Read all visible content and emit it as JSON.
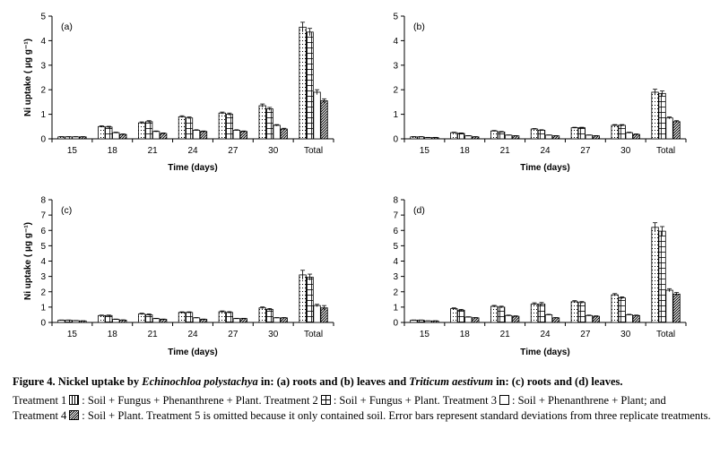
{
  "caption": {
    "title_parts": [
      "Figure 4. Nickel uptake by ",
      "Echinochloa polystachya",
      " in: (a) roots and (b) leaves and ",
      "Triticum aestivum",
      " in: (c) roots and (d) leaves."
    ],
    "t1_label": "Treatment 1",
    "t1_text": ": Soil + Fungus + Phenanthrene + Plant. Treatment 2",
    "t2_text": ":  Soil + Fungus + Plant. Treatment 3",
    "t3_text": ":  Soil + Phenanthrene + Plant; and Treatment 4",
    "t4_text": ": Soil + Plant. Treatment 5 is omitted because it only contained soil.  Error bars represent standard deviations from three replicate treatments."
  },
  "chart_data": [
    {
      "type": "bar",
      "panel": "(a)",
      "categories": [
        "15",
        "18",
        "21",
        "24",
        "27",
        "30",
        "Total"
      ],
      "xlabel": "Time (days)",
      "ylabel": "Ni uptake ( μg g⁻¹)",
      "ylim": [
        0,
        5
      ],
      "yticks": [
        0,
        1,
        2,
        3,
        4,
        5
      ],
      "series": [
        {
          "values": [
            0.08,
            0.5,
            0.65,
            0.9,
            1.05,
            1.35,
            4.55
          ],
          "errors": [
            0.01,
            0.03,
            0.04,
            0.04,
            0.04,
            0.07,
            0.2
          ],
          "pattern": "dots"
        },
        {
          "values": [
            0.08,
            0.48,
            0.7,
            0.85,
            1.0,
            1.22,
            4.35
          ],
          "errors": [
            0.01,
            0.03,
            0.04,
            0.04,
            0.05,
            0.06,
            0.15
          ],
          "pattern": "grid"
        },
        {
          "values": [
            0.08,
            0.25,
            0.3,
            0.35,
            0.35,
            0.55,
            1.9
          ],
          "errors": [
            0.01,
            0.02,
            0.02,
            0.02,
            0.02,
            0.03,
            0.1
          ],
          "pattern": "blank"
        },
        {
          "values": [
            0.08,
            0.18,
            0.22,
            0.3,
            0.3,
            0.4,
            1.55
          ],
          "errors": [
            0.01,
            0.02,
            0.02,
            0.02,
            0.02,
            0.03,
            0.08
          ],
          "pattern": "diag"
        }
      ]
    },
    {
      "type": "bar",
      "panel": "(b)",
      "categories": [
        "15",
        "18",
        "21",
        "24",
        "27",
        "30",
        "Total"
      ],
      "xlabel": "Time (days)",
      "ylabel": "",
      "ylim": [
        0,
        5
      ],
      "yticks": [
        0,
        1,
        2,
        3,
        4,
        5
      ],
      "series": [
        {
          "values": [
            0.08,
            0.25,
            0.32,
            0.4,
            0.45,
            0.55,
            1.9
          ],
          "errors": [
            0.01,
            0.02,
            0.02,
            0.02,
            0.02,
            0.03,
            0.12
          ],
          "pattern": "dots"
        },
        {
          "values": [
            0.08,
            0.22,
            0.28,
            0.35,
            0.45,
            0.55,
            1.85
          ],
          "errors": [
            0.01,
            0.02,
            0.02,
            0.02,
            0.02,
            0.03,
            0.1
          ],
          "pattern": "grid"
        },
        {
          "values": [
            0.05,
            0.12,
            0.15,
            0.15,
            0.15,
            0.25,
            0.85
          ],
          "errors": [
            0.01,
            0.01,
            0.01,
            0.01,
            0.01,
            0.02,
            0.04
          ],
          "pattern": "blank"
        },
        {
          "values": [
            0.05,
            0.08,
            0.12,
            0.12,
            0.12,
            0.18,
            0.7
          ],
          "errors": [
            0.01,
            0.01,
            0.01,
            0.01,
            0.01,
            0.02,
            0.04
          ],
          "pattern": "diag"
        }
      ]
    },
    {
      "type": "bar",
      "panel": "(c)",
      "categories": [
        "15",
        "18",
        "21",
        "24",
        "27",
        "30",
        "Total"
      ],
      "xlabel": "Time (days)",
      "ylabel": "Ni uptake ( μg g⁻¹)",
      "ylim": [
        0,
        8
      ],
      "yticks": [
        0,
        1,
        2,
        3,
        4,
        5,
        6,
        7,
        8
      ],
      "series": [
        {
          "values": [
            0.15,
            0.45,
            0.55,
            0.65,
            0.7,
            0.95,
            3.1
          ],
          "errors": [
            0.01,
            0.03,
            0.05,
            0.04,
            0.05,
            0.06,
            0.3
          ],
          "pattern": "dots"
        },
        {
          "values": [
            0.15,
            0.45,
            0.5,
            0.65,
            0.65,
            0.85,
            2.95
          ],
          "errors": [
            0.01,
            0.03,
            0.05,
            0.04,
            0.05,
            0.06,
            0.2
          ],
          "pattern": "grid"
        },
        {
          "values": [
            0.12,
            0.2,
            0.25,
            0.3,
            0.25,
            0.3,
            1.1
          ],
          "errors": [
            0.01,
            0.02,
            0.02,
            0.02,
            0.02,
            0.02,
            0.08
          ],
          "pattern": "blank"
        },
        {
          "values": [
            0.1,
            0.15,
            0.2,
            0.2,
            0.25,
            0.3,
            0.95
          ],
          "errors": [
            0.01,
            0.02,
            0.02,
            0.02,
            0.02,
            0.02,
            0.15
          ],
          "pattern": "diag"
        }
      ]
    },
    {
      "type": "bar",
      "panel": "(d)",
      "categories": [
        "15",
        "18",
        "21",
        "24",
        "27",
        "30",
        "Total"
      ],
      "xlabel": "Time (days)",
      "ylabel": "",
      "ylim": [
        0,
        8
      ],
      "yticks": [
        0,
        1,
        2,
        3,
        4,
        5,
        6,
        7,
        8
      ],
      "series": [
        {
          "values": [
            0.15,
            0.9,
            1.05,
            1.2,
            1.35,
            1.8,
            6.2
          ],
          "errors": [
            0.01,
            0.05,
            0.06,
            0.08,
            0.07,
            0.08,
            0.3
          ],
          "pattern": "dots"
        },
        {
          "values": [
            0.15,
            0.8,
            1.0,
            1.2,
            1.3,
            1.6,
            5.95
          ],
          "errors": [
            0.01,
            0.05,
            0.06,
            0.1,
            0.06,
            0.07,
            0.3
          ],
          "pattern": "grid"
        },
        {
          "values": [
            0.1,
            0.35,
            0.45,
            0.5,
            0.45,
            0.5,
            2.1
          ],
          "errors": [
            0.01,
            0.02,
            0.03,
            0.03,
            0.03,
            0.03,
            0.1
          ],
          "pattern": "blank"
        },
        {
          "values": [
            0.1,
            0.3,
            0.4,
            0.3,
            0.4,
            0.45,
            1.85
          ],
          "errors": [
            0.01,
            0.02,
            0.03,
            0.02,
            0.03,
            0.03,
            0.1
          ],
          "pattern": "diag"
        }
      ]
    }
  ]
}
